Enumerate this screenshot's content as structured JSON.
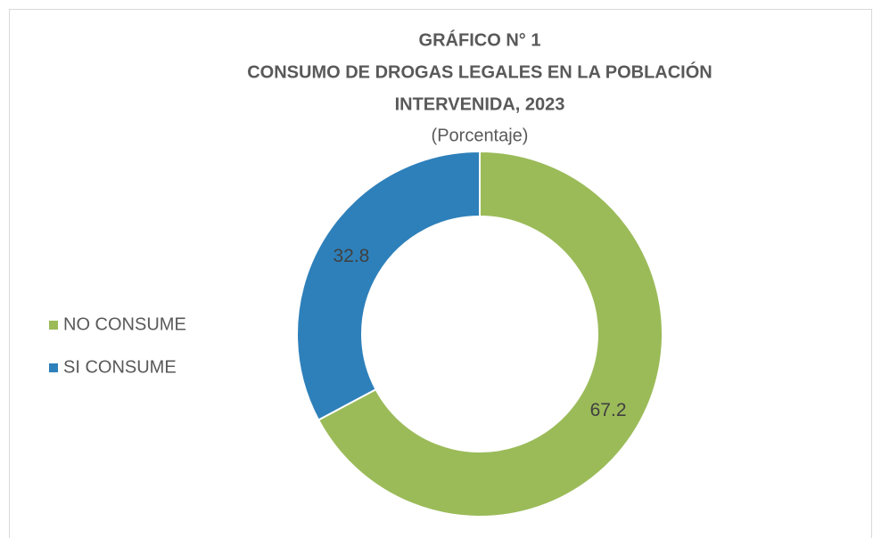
{
  "chart_data": {
    "type": "donut",
    "title": [
      "GRÁFICO N° 1",
      "CONSUMO DE DROGAS LEGALES EN LA POBLACIÓN",
      "INTERVENIDA, 2023"
    ],
    "subtitle": "(Porcentaje)",
    "categories": [
      "NO CONSUME",
      "SI CONSUME"
    ],
    "values": [
      67.2,
      32.8
    ],
    "colors": [
      "#9bbb59",
      "#2e80ba"
    ],
    "legend": "left"
  }
}
